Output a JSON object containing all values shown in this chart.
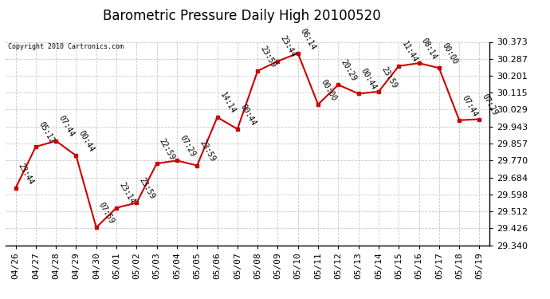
{
  "title": "Barometric Pressure Daily High 20100520",
  "copyright": "Copyright 2010 Cartronics.com",
  "dates": [
    "04/26",
    "04/27",
    "04/28",
    "04/29",
    "04/30",
    "05/01",
    "05/02",
    "05/03",
    "05/04",
    "05/05",
    "05/06",
    "05/07",
    "05/08",
    "05/09",
    "05/10",
    "05/11",
    "05/12",
    "05/13",
    "05/14",
    "05/15",
    "05/16",
    "05/17",
    "05/18",
    "05/19"
  ],
  "values": [
    29.63,
    29.84,
    29.87,
    29.795,
    29.43,
    29.53,
    29.555,
    29.755,
    29.77,
    29.745,
    29.99,
    29.93,
    30.225,
    30.275,
    30.315,
    30.055,
    30.155,
    30.11,
    30.12,
    30.25,
    30.265,
    30.24,
    29.975,
    29.98
  ],
  "annotations": [
    "23:44",
    "05:12",
    "07:44",
    "00:44",
    "07:59",
    "23:14",
    "23:59",
    "22:59",
    "07:29",
    "23:59",
    "14:14",
    "00:44",
    "23:59",
    "23:44",
    "06:14",
    "00:00",
    "20:29",
    "00:44",
    "23:59",
    "11:44",
    "08:14",
    "00:00",
    "07:44",
    "07:29"
  ],
  "ymin": 29.34,
  "ymax": 30.373,
  "yticks": [
    29.34,
    29.426,
    29.512,
    29.598,
    29.684,
    29.77,
    29.857,
    29.943,
    30.029,
    30.115,
    30.201,
    30.287,
    30.373
  ],
  "line_color": "#cc0000",
  "marker_color": "#cc0000",
  "bg_color": "#ffffff",
  "grid_color": "#c8c8c8",
  "title_fontsize": 12,
  "annotation_fontsize": 7,
  "tick_fontsize": 8
}
